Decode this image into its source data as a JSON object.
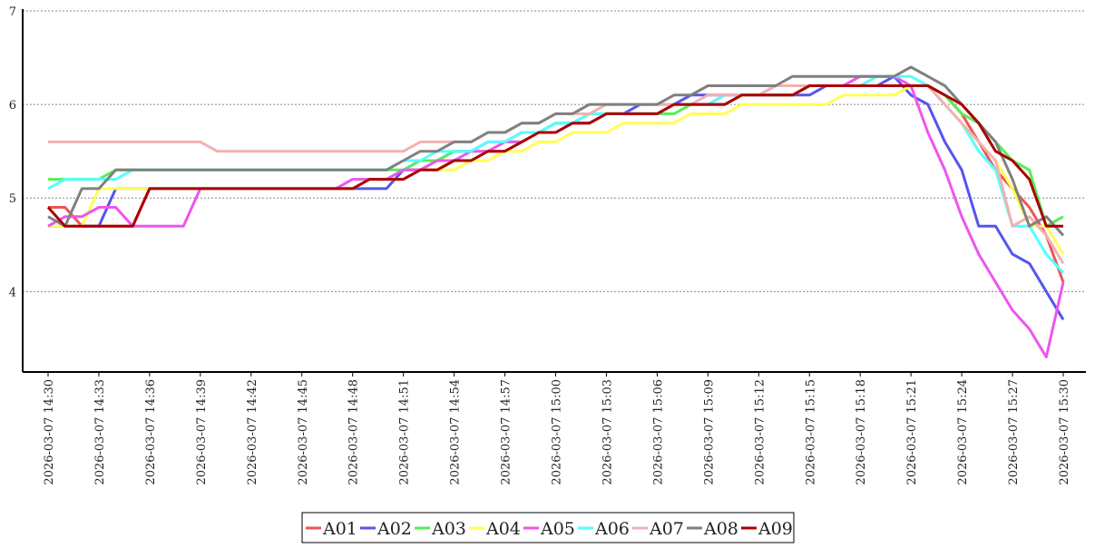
{
  "chart_data": {
    "type": "line",
    "title": "",
    "xlabel": "",
    "ylabel": "",
    "ylim": [
      3.14,
      7
    ],
    "yticks": [
      "4",
      "5",
      "6",
      "7"
    ],
    "grid": "horizontal dashed",
    "legend_position": "bottom-center",
    "x_start": "2026-03-07 14:30",
    "x_step_minutes": 1,
    "xtick_every": 3,
    "xticks": [
      "2026-03-07  14:30",
      "2026-03-07  14:33",
      "2026-03-07  14:36",
      "2026-03-07  14:39",
      "2026-03-07  14:42",
      "2026-03-07  14:45",
      "2026-03-07  14:48",
      "2026-03-07  14:51",
      "2026-03-07  14:54",
      "2026-03-07  14:57",
      "2026-03-07  15:00",
      "2026-03-07  15:03",
      "2026-03-07  15:06",
      "2026-03-07  15:09",
      "2026-03-07  15:12",
      "2026-03-07  15:15",
      "2026-03-07  15:18",
      "2026-03-07  15:21",
      "2026-03-07  15:24",
      "2026-03-07  15:27",
      "2026-03-07  15:30"
    ],
    "series": [
      {
        "name": "A01",
        "color": "#ee5555",
        "values": [
          4.9,
          4.9,
          4.7,
          4.7,
          4.7,
          4.7,
          5.1,
          5.1,
          5.1,
          5.1,
          5.1,
          5.1,
          5.1,
          5.1,
          5.1,
          5.1,
          5.1,
          5.1,
          5.1,
          5.2,
          5.2,
          5.2,
          5.3,
          5.3,
          5.4,
          5.4,
          5.5,
          5.5,
          5.6,
          5.7,
          5.7,
          5.8,
          5.8,
          5.9,
          5.9,
          5.9,
          5.9,
          6.0,
          6.0,
          6.0,
          6.0,
          6.1,
          6.1,
          6.1,
          6.1,
          6.2,
          6.2,
          6.2,
          6.2,
          6.2,
          6.2,
          6.2,
          6.2,
          6.1,
          5.9,
          5.6,
          5.3,
          5.1,
          4.9,
          4.6,
          4.1
        ]
      },
      {
        "name": "A02",
        "color": "#5555ee",
        "values": [
          4.7,
          4.7,
          4.7,
          4.7,
          5.1,
          5.1,
          5.1,
          5.1,
          5.1,
          5.1,
          5.1,
          5.1,
          5.1,
          5.1,
          5.1,
          5.1,
          5.1,
          5.1,
          5.1,
          5.1,
          5.1,
          5.3,
          5.3,
          5.4,
          5.5,
          5.5,
          5.6,
          5.6,
          5.7,
          5.7,
          5.8,
          5.8,
          5.9,
          5.9,
          5.9,
          6.0,
          6.0,
          6.0,
          6.1,
          6.1,
          6.1,
          6.1,
          6.1,
          6.1,
          6.1,
          6.1,
          6.2,
          6.2,
          6.2,
          6.2,
          6.3,
          6.1,
          6.0,
          5.6,
          5.3,
          4.7,
          4.7,
          4.4,
          4.3,
          4.0,
          3.7
        ]
      },
      {
        "name": "A03",
        "color": "#55ee55",
        "values": [
          5.2,
          5.2,
          5.2,
          5.2,
          5.3,
          5.3,
          5.3,
          5.3,
          5.3,
          5.3,
          5.3,
          5.3,
          5.3,
          5.3,
          5.3,
          5.3,
          5.3,
          5.3,
          5.3,
          5.3,
          5.3,
          5.3,
          5.4,
          5.4,
          5.5,
          5.5,
          5.5,
          5.6,
          5.6,
          5.7,
          5.8,
          5.8,
          5.8,
          5.9,
          5.9,
          5.9,
          5.9,
          5.9,
          6.0,
          6.0,
          6.0,
          6.1,
          6.1,
          6.1,
          6.1,
          6.2,
          6.2,
          6.2,
          6.2,
          6.2,
          6.2,
          6.2,
          6.2,
          6.1,
          5.9,
          5.8,
          5.6,
          5.4,
          5.3,
          4.7,
          4.8
        ]
      },
      {
        "name": "A04",
        "color": "#ffff55",
        "values": [
          4.7,
          4.7,
          4.7,
          5.1,
          5.1,
          5.1,
          5.1,
          5.1,
          5.1,
          5.1,
          5.1,
          5.1,
          5.1,
          5.1,
          5.1,
          5.1,
          5.1,
          5.1,
          5.1,
          5.2,
          5.2,
          5.2,
          5.3,
          5.3,
          5.3,
          5.4,
          5.4,
          5.5,
          5.5,
          5.6,
          5.6,
          5.7,
          5.7,
          5.7,
          5.8,
          5.8,
          5.8,
          5.8,
          5.9,
          5.9,
          5.9,
          6.0,
          6.0,
          6.0,
          6.0,
          6.0,
          6.0,
          6.1,
          6.1,
          6.1,
          6.1,
          6.2,
          6.2,
          6.0,
          5.8,
          5.6,
          5.4,
          5.1,
          4.7,
          4.7,
          4.4
        ]
      },
      {
        "name": "A05",
        "color": "#ee55ee",
        "values": [
          4.7,
          4.8,
          4.8,
          4.9,
          4.9,
          4.7,
          4.7,
          4.7,
          4.7,
          5.1,
          5.1,
          5.1,
          5.1,
          5.1,
          5.1,
          5.1,
          5.1,
          5.1,
          5.2,
          5.2,
          5.2,
          5.3,
          5.3,
          5.4,
          5.4,
          5.5,
          5.5,
          5.6,
          5.6,
          5.7,
          5.7,
          5.8,
          5.8,
          5.9,
          5.9,
          5.9,
          5.9,
          6.0,
          6.0,
          6.0,
          6.1,
          6.1,
          6.1,
          6.2,
          6.2,
          6.2,
          6.2,
          6.2,
          6.3,
          6.3,
          6.3,
          6.2,
          5.7,
          5.3,
          4.8,
          4.4,
          4.1,
          3.8,
          3.6,
          3.3,
          4.1
        ]
      },
      {
        "name": "A06",
        "color": "#55ffff",
        "values": [
          5.1,
          5.2,
          5.2,
          5.2,
          5.2,
          5.3,
          5.3,
          5.3,
          5.3,
          5.3,
          5.3,
          5.3,
          5.3,
          5.3,
          5.3,
          5.3,
          5.3,
          5.3,
          5.3,
          5.3,
          5.3,
          5.4,
          5.4,
          5.5,
          5.5,
          5.5,
          5.6,
          5.6,
          5.7,
          5.7,
          5.8,
          5.8,
          5.9,
          5.9,
          5.9,
          5.9,
          5.9,
          6.0,
          6.0,
          6.0,
          6.1,
          6.1,
          6.1,
          6.2,
          6.2,
          6.2,
          6.2,
          6.2,
          6.2,
          6.3,
          6.3,
          6.3,
          6.2,
          6.0,
          5.8,
          5.5,
          5.3,
          4.7,
          4.7,
          4.4,
          4.2
        ]
      },
      {
        "name": "A07",
        "color": "#f4b0b0",
        "values": [
          5.6,
          5.6,
          5.6,
          5.6,
          5.6,
          5.6,
          5.6,
          5.6,
          5.6,
          5.6,
          5.5,
          5.5,
          5.5,
          5.5,
          5.5,
          5.5,
          5.5,
          5.5,
          5.5,
          5.5,
          5.5,
          5.5,
          5.6,
          5.6,
          5.6,
          5.6,
          5.7,
          5.7,
          5.8,
          5.8,
          5.9,
          5.9,
          5.9,
          6.0,
          6.0,
          6.0,
          6.0,
          6.0,
          6.0,
          6.1,
          6.1,
          6.1,
          6.1,
          6.2,
          6.2,
          6.2,
          6.2,
          6.2,
          6.2,
          6.2,
          6.2,
          6.2,
          6.2,
          6.0,
          5.8,
          5.6,
          5.4,
          4.7,
          4.8,
          4.6,
          4.3
        ]
      },
      {
        "name": "A08",
        "color": "#808080",
        "values": [
          4.8,
          4.7,
          5.1,
          5.1,
          5.3,
          5.3,
          5.3,
          5.3,
          5.3,
          5.3,
          5.3,
          5.3,
          5.3,
          5.3,
          5.3,
          5.3,
          5.3,
          5.3,
          5.3,
          5.3,
          5.3,
          5.4,
          5.5,
          5.5,
          5.6,
          5.6,
          5.7,
          5.7,
          5.8,
          5.8,
          5.9,
          5.9,
          6.0,
          6.0,
          6.0,
          6.0,
          6.0,
          6.1,
          6.1,
          6.2,
          6.2,
          6.2,
          6.2,
          6.2,
          6.3,
          6.3,
          6.3,
          6.3,
          6.3,
          6.3,
          6.3,
          6.4,
          6.3,
          6.2,
          6.0,
          5.8,
          5.6,
          5.2,
          4.7,
          4.8,
          4.6
        ]
      },
      {
        "name": "A09",
        "color": "#aa0000",
        "values": [
          4.9,
          4.7,
          4.7,
          4.7,
          4.7,
          4.7,
          5.1,
          5.1,
          5.1,
          5.1,
          5.1,
          5.1,
          5.1,
          5.1,
          5.1,
          5.1,
          5.1,
          5.1,
          5.1,
          5.2,
          5.2,
          5.2,
          5.3,
          5.3,
          5.4,
          5.4,
          5.5,
          5.5,
          5.6,
          5.7,
          5.7,
          5.8,
          5.8,
          5.9,
          5.9,
          5.9,
          5.9,
          6.0,
          6.0,
          6.0,
          6.0,
          6.1,
          6.1,
          6.1,
          6.1,
          6.2,
          6.2,
          6.2,
          6.2,
          6.2,
          6.2,
          6.2,
          6.2,
          6.1,
          6.0,
          5.8,
          5.5,
          5.4,
          5.2,
          4.7,
          4.7
        ]
      }
    ]
  }
}
